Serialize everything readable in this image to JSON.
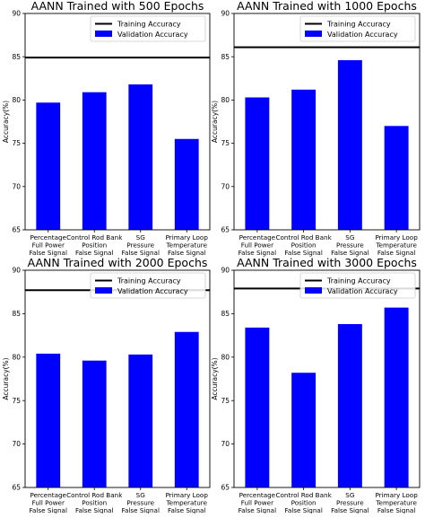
{
  "chart_data": [
    {
      "type": "bar",
      "title": "AANN Trained with 500 Epochs",
      "xlabel": "",
      "ylabel": "Accuracy(%)",
      "ylim": [
        65,
        90
      ],
      "yticks": [
        65,
        70,
        75,
        80,
        85,
        90
      ],
      "categories": [
        [
          "Percentage",
          "Full Power",
          "False Signal"
        ],
        [
          "Control Rod Bank",
          "Position",
          "False Signal"
        ],
        [
          "SG",
          "Pressure",
          "False Signal"
        ],
        [
          "Primary Loop",
          "Temperature",
          "False Signal"
        ]
      ],
      "series": [
        {
          "name": "Validation Accuracy",
          "values": [
            79.7,
            80.9,
            81.8,
            75.5
          ],
          "color": "#0000ff"
        }
      ],
      "training_accuracy": {
        "name": "Training Accuracy",
        "value": 84.9,
        "color": "#000000"
      },
      "legend": "top-right",
      "grid": false
    },
    {
      "type": "bar",
      "title": "AANN Trained with 1000 Epochs",
      "xlabel": "",
      "ylabel": "Accuracy(%)",
      "ylim": [
        65,
        90
      ],
      "yticks": [
        65,
        70,
        75,
        80,
        85,
        90
      ],
      "categories": [
        [
          "Percentage",
          "Full Power",
          "False Signal"
        ],
        [
          "Control Rod Bank",
          "Position",
          "False Signal"
        ],
        [
          "SG",
          "Pressure",
          "False Signal"
        ],
        [
          "Primary Loop",
          "Temperature",
          "False Signal"
        ]
      ],
      "series": [
        {
          "name": "Validation Accuracy",
          "values": [
            80.3,
            81.2,
            84.6,
            77.0
          ],
          "color": "#0000ff"
        }
      ],
      "training_accuracy": {
        "name": "Training Accuracy",
        "value": 86.1,
        "color": "#000000"
      },
      "legend": "top-right",
      "grid": false
    },
    {
      "type": "bar",
      "title": "AANN Trained with 2000 Epochs",
      "xlabel": "",
      "ylabel": "Accuracy(%)",
      "ylim": [
        65,
        90
      ],
      "yticks": [
        65,
        70,
        75,
        80,
        85,
        90
      ],
      "categories": [
        [
          "Percentage",
          "Full Power",
          "False Signal"
        ],
        [
          "Control Rod Bank",
          "Position",
          "False Signal"
        ],
        [
          "SG",
          "Pressure",
          "False Signal"
        ],
        [
          "Primary Loop",
          "Temperature",
          "False Signal"
        ]
      ],
      "series": [
        {
          "name": "Validation Accuracy",
          "values": [
            80.4,
            79.6,
            80.3,
            82.9
          ],
          "color": "#0000ff"
        }
      ],
      "training_accuracy": {
        "name": "Training Accuracy",
        "value": 87.7,
        "color": "#000000"
      },
      "legend": "top-right",
      "grid": false
    },
    {
      "type": "bar",
      "title": "AANN Trained with 3000 Epochs",
      "xlabel": "",
      "ylabel": "Accuracy(%)",
      "ylim": [
        65,
        90
      ],
      "yticks": [
        65,
        70,
        75,
        80,
        85,
        90
      ],
      "categories": [
        [
          "Percentage",
          "Full Power",
          "False Signal"
        ],
        [
          "Control Rod Bank",
          "Position",
          "False Signal"
        ],
        [
          "SG",
          "Pressure",
          "False Signal"
        ],
        [
          "Primary Loop",
          "Temperature",
          "False Signal"
        ]
      ],
      "series": [
        {
          "name": "Validation Accuracy",
          "values": [
            83.4,
            78.2,
            83.8,
            85.7
          ],
          "color": "#0000ff"
        }
      ],
      "training_accuracy": {
        "name": "Training Accuracy",
        "value": 87.9,
        "color": "#000000"
      },
      "legend": "top-right",
      "grid": false
    }
  ]
}
